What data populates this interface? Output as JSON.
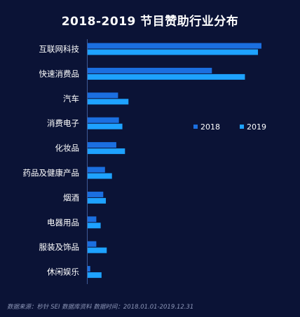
{
  "chart_data": {
    "type": "bar",
    "orientation": "horizontal",
    "title": "2018-2019 节目赞助行业分布",
    "categories": [
      "互联网科技",
      "快速消费品",
      "汽车",
      "消费电子",
      "化妆品",
      "药品及健康产品",
      "烟酒",
      "电器用品",
      "服装及饰品",
      "休闲娱乐"
    ],
    "series": [
      {
        "name": "2018",
        "color": "#1b6fe0",
        "values": [
          100,
          71.5,
          17.5,
          18,
          16.5,
          10,
          9,
          5,
          5,
          1.5
        ]
      },
      {
        "name": "2019",
        "color": "#1ea2ff",
        "values": [
          98,
          90.5,
          23.5,
          20,
          21.5,
          14,
          10.5,
          7.5,
          11,
          8
        ]
      }
    ],
    "xlim": [
      0,
      100
    ],
    "grid": false,
    "legend_position": "right"
  },
  "footnote": "数据来源：秒针 SEI 数据库资料  数据时间：2018.01.01-2019.12.31"
}
